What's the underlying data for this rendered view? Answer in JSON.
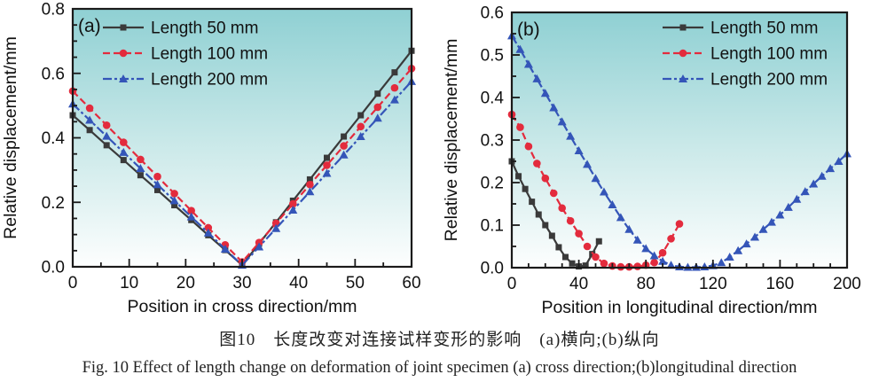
{
  "figure": {
    "caption_cn": "图10　长度改变对连接试样变形的影响　(a)横向;(b)纵向",
    "caption_en": "Fig. 10   Effect of length change on deformation of joint specimen   (a) cross direction;(b)longitudinal direction"
  },
  "colors": {
    "series_black": "#3a3a3a",
    "series_red": "#e2ututu",
    "frame": "#1a1a1a",
    "text": "#111111",
    "plot_gradient_top": "#8fd0d3",
    "plot_gradient_mid": "#cdeaea",
    "plot_gradient_bottom": "#fdfefe"
  },
  "chart_data": [
    {
      "type": "line",
      "panel_label": "(a)",
      "xlabel": "Position in cross direction/mm",
      "ylabel": "Relative displacement/mm",
      "xlim": [
        0,
        60
      ],
      "ylim": [
        0,
        0.8
      ],
      "xticks": {
        "values": [
          0,
          10,
          20,
          30,
          40,
          50,
          60
        ],
        "labels": [
          "0",
          "10",
          "20",
          "30",
          "40",
          "50",
          "60"
        ]
      },
      "yticks": {
        "values": [
          0.0,
          0.2,
          0.4,
          0.6,
          0.8
        ],
        "labels": [
          "0.0",
          "0.2",
          "0.4",
          "0.6",
          "0.8"
        ]
      },
      "x_minor_step": 5,
      "y_minor_step": 0.05,
      "grid": false,
      "legend_position": "top-left",
      "series": [
        {
          "name": "Length 50 mm",
          "color": "#3a3a3a",
          "marker": "square",
          "dash": "solid",
          "points": [
            [
              0,
              0.47
            ],
            [
              3,
              0.424
            ],
            [
              6,
              0.377
            ],
            [
              9,
              0.331
            ],
            [
              12,
              0.284
            ],
            [
              15,
              0.238
            ],
            [
              18,
              0.191
            ],
            [
              21,
              0.145
            ],
            [
              24,
              0.098
            ],
            [
              27,
              0.052
            ],
            [
              30,
              0.005
            ],
            [
              33,
              0.072
            ],
            [
              36,
              0.138
            ],
            [
              39,
              0.205
            ],
            [
              42,
              0.271
            ],
            [
              45,
              0.338
            ],
            [
              48,
              0.404
            ],
            [
              51,
              0.47
            ],
            [
              54,
              0.537
            ],
            [
              57,
              0.603
            ],
            [
              60,
              0.67
            ]
          ]
        },
        {
          "name": "Length 100 mm",
          "color": "#e32b3d",
          "marker": "circle",
          "dash": "dashed",
          "points": [
            [
              0,
              0.545
            ],
            [
              3,
              0.492
            ],
            [
              6,
              0.439
            ],
            [
              9,
              0.386
            ],
            [
              12,
              0.333
            ],
            [
              15,
              0.28
            ],
            [
              18,
              0.227
            ],
            [
              21,
              0.174
            ],
            [
              24,
              0.121
            ],
            [
              27,
              0.068
            ],
            [
              30,
              0.015
            ],
            [
              33,
              0.075
            ],
            [
              36,
              0.135
            ],
            [
              39,
              0.195
            ],
            [
              42,
              0.255
            ],
            [
              45,
              0.315
            ],
            [
              48,
              0.375
            ],
            [
              51,
              0.435
            ],
            [
              54,
              0.495
            ],
            [
              57,
              0.555
            ],
            [
              60,
              0.615
            ]
          ]
        },
        {
          "name": "Length 200 mm",
          "color": "#3455b8",
          "marker": "triangle",
          "dash": "dashdot",
          "points": [
            [
              0,
              0.505
            ],
            [
              3,
              0.455
            ],
            [
              6,
              0.405
            ],
            [
              9,
              0.355
            ],
            [
              12,
              0.305
            ],
            [
              15,
              0.255
            ],
            [
              18,
              0.205
            ],
            [
              21,
              0.155
            ],
            [
              24,
              0.105
            ],
            [
              27,
              0.055
            ],
            [
              30,
              0.005
            ],
            [
              33,
              0.062
            ],
            [
              36,
              0.119
            ],
            [
              39,
              0.176
            ],
            [
              42,
              0.233
            ],
            [
              45,
              0.29
            ],
            [
              48,
              0.347
            ],
            [
              51,
              0.404
            ],
            [
              54,
              0.461
            ],
            [
              57,
              0.518
            ],
            [
              60,
              0.575
            ]
          ]
        }
      ]
    },
    {
      "type": "line",
      "panel_label": "(b)",
      "xlabel": "Position in longitudinal direction/mm",
      "ylabel": "Relative displacement/mm",
      "xlim": [
        0,
        200
      ],
      "ylim": [
        0,
        0.6
      ],
      "xticks": {
        "values": [
          0,
          40,
          80,
          120,
          160,
          200
        ],
        "labels": [
          "0",
          "40",
          "80",
          "120",
          "160",
          "200"
        ]
      },
      "yticks": {
        "values": [
          0.0,
          0.1,
          0.2,
          0.3,
          0.4,
          0.5,
          0.6
        ],
        "labels": [
          "0.0",
          "0.1",
          "0.2",
          "0.3",
          "0.4",
          "0.5",
          "0.6"
        ]
      },
      "x_minor_step": 10,
      "y_minor_step": 0.05,
      "grid": false,
      "legend_position": "top-right",
      "series": [
        {
          "name": "Length 50 mm",
          "color": "#3a3a3a",
          "marker": "square",
          "dash": "solid",
          "points": [
            [
              0,
              0.25
            ],
            [
              4,
              0.215
            ],
            [
              8,
              0.185
            ],
            [
              12,
              0.155
            ],
            [
              16,
              0.125
            ],
            [
              20,
              0.1
            ],
            [
              24,
              0.075
            ],
            [
              28,
              0.048
            ],
            [
              32,
              0.025
            ],
            [
              36,
              0.01
            ],
            [
              40,
              0.003
            ],
            [
              44,
              0.005
            ],
            [
              48,
              0.032
            ],
            [
              52,
              0.062
            ]
          ]
        },
        {
          "name": "Length 100 mm",
          "color": "#e32b3d",
          "marker": "circle",
          "dash": "dashed",
          "points": [
            [
              0,
              0.36
            ],
            [
              5,
              0.33
            ],
            [
              10,
              0.285
            ],
            [
              15,
              0.245
            ],
            [
              20,
              0.21
            ],
            [
              25,
              0.175
            ],
            [
              30,
              0.14
            ],
            [
              35,
              0.11
            ],
            [
              40,
              0.08
            ],
            [
              45,
              0.05
            ],
            [
              50,
              0.025
            ],
            [
              55,
              0.01
            ],
            [
              60,
              0.004
            ],
            [
              65,
              0.002
            ],
            [
              70,
              0.002
            ],
            [
              75,
              0.003
            ],
            [
              80,
              0.006
            ],
            [
              85,
              0.012
            ],
            [
              90,
              0.035
            ],
            [
              95,
              0.068
            ],
            [
              100,
              0.103
            ]
          ]
        },
        {
          "name": "Length 200 mm",
          "color": "#3455b8",
          "marker": "triangle",
          "dash": "dashdot",
          "points": [
            [
              0,
              0.545
            ],
            [
              5,
              0.513
            ],
            [
              10,
              0.478
            ],
            [
              15,
              0.444
            ],
            [
              20,
              0.41
            ],
            [
              25,
              0.376
            ],
            [
              30,
              0.343
            ],
            [
              35,
              0.309
            ],
            [
              40,
              0.275
            ],
            [
              45,
              0.243
            ],
            [
              50,
              0.21
            ],
            [
              55,
              0.178
            ],
            [
              60,
              0.148
            ],
            [
              65,
              0.118
            ],
            [
              70,
              0.09
            ],
            [
              75,
              0.065
            ],
            [
              80,
              0.045
            ],
            [
              85,
              0.028
            ],
            [
              90,
              0.015
            ],
            [
              95,
              0.006
            ],
            [
              100,
              0.002
            ],
            [
              105,
              0.001
            ],
            [
              110,
              0.001
            ],
            [
              115,
              0.002
            ],
            [
              120,
              0.005
            ],
            [
              125,
              0.012
            ],
            [
              130,
              0.025
            ],
            [
              135,
              0.04
            ],
            [
              140,
              0.056
            ],
            [
              145,
              0.072
            ],
            [
              150,
              0.09
            ],
            [
              155,
              0.107
            ],
            [
              160,
              0.124
            ],
            [
              165,
              0.142
            ],
            [
              170,
              0.161
            ],
            [
              175,
              0.179
            ],
            [
              180,
              0.197
            ],
            [
              185,
              0.215
            ],
            [
              190,
              0.233
            ],
            [
              195,
              0.25
            ],
            [
              200,
              0.268
            ]
          ]
        }
      ]
    }
  ]
}
